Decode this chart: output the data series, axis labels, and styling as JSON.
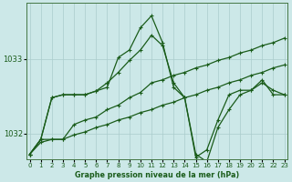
{
  "title": "Graphe pression niveau de la mer (hPa)",
  "bg_color": "#cce8e8",
  "grid_color": "#aacccc",
  "line_color": "#1a5c1a",
  "x_ticks": [
    0,
    1,
    2,
    3,
    4,
    5,
    6,
    7,
    8,
    9,
    10,
    11,
    12,
    13,
    14,
    15,
    16,
    17,
    18,
    19,
    20,
    21,
    22,
    23
  ],
  "y_ticks": [
    1032,
    1033
  ],
  "ylim": [
    1031.65,
    1033.75
  ],
  "xlim": [
    -0.3,
    23.3
  ],
  "series": [
    [
      1031.72,
      1031.92,
      1032.48,
      1032.52,
      1032.52,
      1032.52,
      1032.57,
      1032.62,
      1033.02,
      1033.12,
      1033.42,
      1033.58,
      1033.22,
      1032.62,
      1032.48,
      1031.68,
      1031.78,
      1032.18,
      1032.52,
      1032.58,
      1032.58,
      1032.72,
      1032.52,
      1032.52
    ],
    [
      1031.72,
      1031.92,
      1032.48,
      1032.52,
      1032.52,
      1032.52,
      1032.57,
      1032.68,
      1032.82,
      1032.98,
      1033.12,
      1033.32,
      1033.18,
      1032.68,
      1032.48,
      1031.72,
      1031.62,
      1032.08,
      1032.32,
      1032.52,
      1032.58,
      1032.68,
      1032.58,
      1032.52
    ],
    [
      1031.72,
      1031.92,
      1031.92,
      1031.92,
      1031.98,
      1032.02,
      1032.08,
      1032.12,
      1032.18,
      1032.22,
      1032.28,
      1032.32,
      1032.38,
      1032.42,
      1032.48,
      1032.52,
      1032.58,
      1032.62,
      1032.68,
      1032.72,
      1032.78,
      1032.82,
      1032.88,
      1032.92
    ],
    [
      1031.72,
      1031.88,
      1031.92,
      1031.92,
      1032.12,
      1032.18,
      1032.22,
      1032.32,
      1032.38,
      1032.48,
      1032.55,
      1032.68,
      1032.72,
      1032.78,
      1032.82,
      1032.88,
      1032.92,
      1032.98,
      1033.02,
      1033.08,
      1033.12,
      1033.18,
      1033.22,
      1033.28
    ]
  ]
}
